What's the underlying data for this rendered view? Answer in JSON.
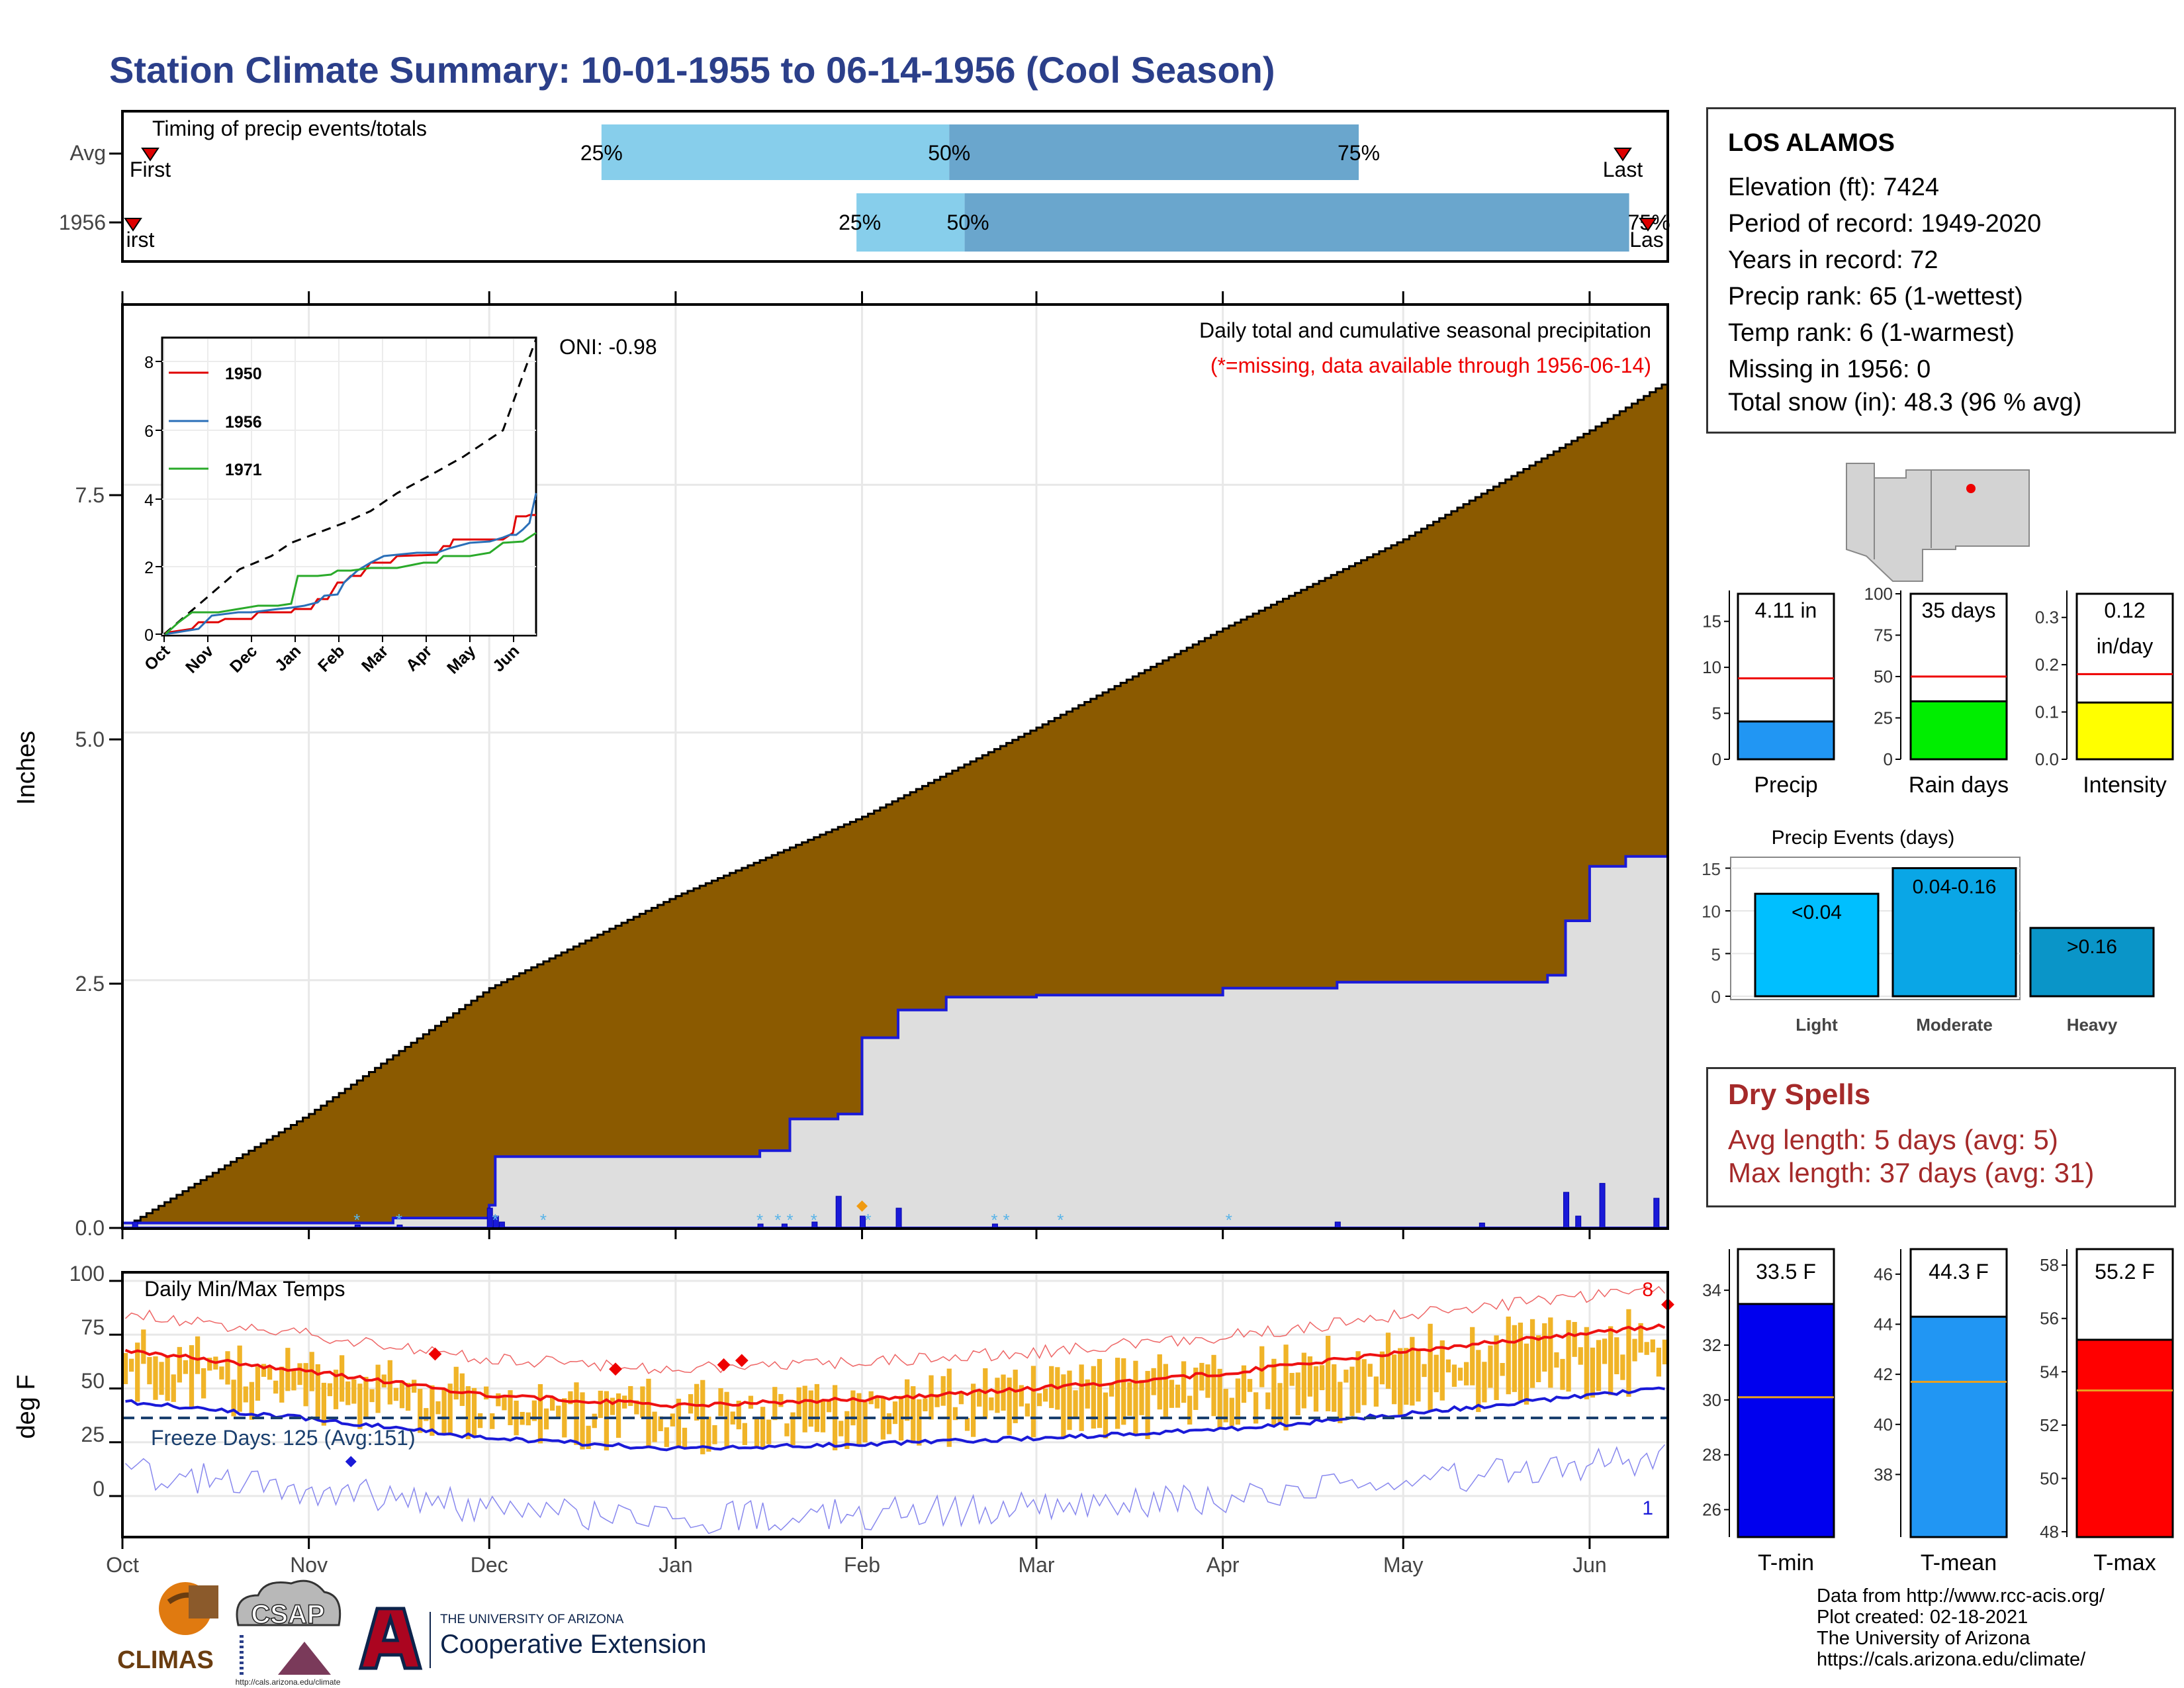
{
  "title": "Station Climate Summary: 10-01-1955 to 06-14-1956 (Cool Season)",
  "colors": {
    "title": "#2b3f8a",
    "cumulative_fill": "#8b5a00",
    "avg_fill": "#dedede",
    "seasonal_line": "#1a1ad8",
    "q_light": "#87ceeb",
    "q_dark": "#6aa6cd",
    "tmax": "#ee1111",
    "tmin": "#1a1ad8",
    "bars": "#f0b428",
    "freeze": "#1a3f6e",
    "dryspell": "#a52a2a",
    "rain_bar": "#00ee00",
    "intensity_bar": "#ffff00",
    "precip_bar": "#2196f3",
    "light": "#00bfff",
    "moderate": "#0aa6e6",
    "heavy": "#0a95c8"
  },
  "timing": {
    "title": "Timing of precip events/totals",
    "rows": [
      {
        "label": "Avg",
        "first": "First",
        "last": "Last",
        "p25": "25%",
        "p50": "50%",
        "p75": "75%"
      },
      {
        "label": "1956",
        "first": "irst",
        "last": "Las",
        "p25": "25%",
        "p50": "50%",
        "p75": "75%"
      }
    ],
    "avg_fractions": {
      "first": 0.04,
      "p25": 0.31,
      "p50": 0.535,
      "p75": 0.8,
      "last": 0.96
    },
    "y1956_fractions": {
      "first": 0.01,
      "p25": 0.475,
      "p50": 0.545,
      "p75": 1.0,
      "last": 0.985
    }
  },
  "main": {
    "ylabel": "Inches",
    "oni": "ONI: -0.98",
    "caption": "Daily total and cumulative seasonal precipitation",
    "missing_note": "(*=missing, data available through 1956-06-14)",
    "yticks": [
      "0.0",
      "2.5",
      "5.0",
      "7.5"
    ]
  },
  "inset": {
    "legend": [
      "1950",
      "1956",
      "1971"
    ],
    "yticks": [
      "0",
      "2",
      "4",
      "6",
      "8"
    ],
    "xticks": [
      "Oct",
      "Nov",
      "Dec",
      "Jan",
      "Feb",
      "Mar",
      "Apr",
      "May",
      "Jun"
    ]
  },
  "temps": {
    "title": "Daily Min/Max Temps",
    "ylabel": "deg F",
    "freeze": "Freeze Days: 125 (Avg:151)",
    "yticks": [
      "0",
      "25",
      "50",
      "75",
      "100"
    ],
    "count_top": "8",
    "count_bottom": "1"
  },
  "months": [
    "Oct",
    "Nov",
    "Dec",
    "Jan",
    "Feb",
    "Mar",
    "Apr",
    "May",
    "Jun"
  ],
  "station": {
    "name": "LOS ALAMOS",
    "lines": [
      "Elevation (ft): 7424",
      "Period of record: 1949-2020",
      "Years in record: 72",
      "Precip rank: 65 (1-wettest)",
      "Temp rank: 6 (1-warmest)",
      "Missing in 1956: 0",
      "Total snow (in): 48.3 (96 % avg)"
    ]
  },
  "gauges": [
    {
      "label": "Precip",
      "value_text": "4.11 in",
      "value": 4.11,
      "avg": 8.8,
      "min": 0,
      "max": 18,
      "ticks": [
        "0",
        "5",
        "10",
        "15"
      ],
      "tickvals": [
        0,
        5,
        10,
        15
      ]
    },
    {
      "label": "Rain days",
      "value_text": "35 days",
      "value": 35,
      "avg": 50,
      "min": 0,
      "max": 100,
      "ticks": [
        "0",
        "25",
        "50",
        "75",
        "100"
      ],
      "tickvals": [
        0,
        25,
        50,
        75,
        100
      ]
    },
    {
      "label": "Intensity",
      "value_text": "0.12",
      "value_text2": "in/day",
      "value": 0.12,
      "avg": 0.18,
      "min": 0,
      "max": 0.35,
      "ticks": [
        "0.0",
        "0.1",
        "0.2",
        "0.3"
      ],
      "tickvals": [
        0,
        0.1,
        0.2,
        0.3
      ]
    }
  ],
  "events": {
    "title": "Precip Events (days)",
    "yticks": [
      "0",
      "5",
      "10",
      "15"
    ],
    "bars": [
      {
        "category": "Light",
        "label": "<0.04",
        "value": 12
      },
      {
        "category": "Moderate",
        "label": "0.04-0.16",
        "value": 15
      },
      {
        "category": "Heavy",
        "label": ">0.16",
        "value": 8
      }
    ]
  },
  "dryspells": {
    "title": "Dry Spells",
    "avg": "Avg length: 5 days (avg: 5)",
    "max": "Max length: 37 days (avg: 31)"
  },
  "temp_gauges": [
    {
      "label": "T-min",
      "value_text": "33.5 F",
      "value": 33.5,
      "avg": 30.1,
      "min": 25,
      "max": 35.5,
      "ticks": [
        "26",
        "28",
        "30",
        "32",
        "34"
      ],
      "tickvals": [
        26,
        28,
        30,
        32,
        34
      ]
    },
    {
      "label": "T-mean",
      "value_text": "44.3 F",
      "value": 44.3,
      "avg": 41.7,
      "min": 35.5,
      "max": 47,
      "ticks": [
        "38",
        "40",
        "42",
        "44",
        "46"
      ],
      "tickvals": [
        38,
        40,
        42,
        44,
        46
      ]
    },
    {
      "label": "T-max",
      "value_text": "55.2 F",
      "value": 55.2,
      "avg": 53.3,
      "min": 47.8,
      "max": 58.6,
      "ticks": [
        "48",
        "50",
        "52",
        "54",
        "56",
        "58"
      ],
      "tickvals": [
        48,
        50,
        52,
        54,
        56,
        58
      ]
    }
  ],
  "footer": [
    "Data from http://www.rcc-acis.org/",
    "Plot created: 02-18-2021",
    "The University of Arizona",
    "https://cals.arizona.edu/climate/"
  ],
  "logos": {
    "climas": "CLIMAS",
    "csap": "CSAP",
    "csap_url": "http://cals.arizona.edu/climate",
    "ua_small": "THE UNIVERSITY OF ARIZONA",
    "ua_big": "Cooperative Extension"
  },
  "chart_data": [
    {
      "type": "area",
      "title": "Daily total and cumulative seasonal precipitation",
      "xlabel": "",
      "ylabel": "Inches",
      "x_range": [
        "1955-10-01",
        "1956-06-14"
      ],
      "ylim": [
        0,
        9.3
      ],
      "series": [
        {
          "name": "Cumulative average",
          "x": [
            "1955-10-01",
            "1955-11-01",
            "1955-12-01",
            "1956-01-01",
            "1956-02-01",
            "1956-03-01",
            "1956-04-01",
            "1956-05-01",
            "1956-06-01",
            "1956-06-14"
          ],
          "values": [
            0.0,
            1.15,
            2.42,
            3.35,
            4.15,
            5.05,
            6.05,
            6.95,
            8.05,
            8.55
          ]
        },
        {
          "name": "1956 cumulative",
          "x": [
            "1955-10-01",
            "1955-11-15",
            "1955-12-01",
            "1955-12-02",
            "1956-01-15",
            "1956-01-20",
            "1956-01-28",
            "1956-02-01",
            "1956-02-07",
            "1956-02-15",
            "1956-03-01",
            "1956-04-01",
            "1956-04-20",
            "1956-05-25",
            "1956-05-28",
            "1956-06-01",
            "1956-06-07",
            "1956-06-14"
          ],
          "values": [
            0.05,
            0.1,
            0.23,
            0.72,
            0.78,
            1.1,
            1.15,
            1.92,
            2.2,
            2.33,
            2.35,
            2.42,
            2.48,
            2.55,
            3.1,
            3.65,
            3.75,
            4.11
          ]
        }
      ],
      "grid": true
    },
    {
      "type": "line",
      "title": "Daily Min/Max Temps",
      "ylabel": "deg F",
      "ylim": [
        -20,
        100
      ],
      "x_range": [
        "1955-10-01",
        "1956-06-14"
      ],
      "series": [
        {
          "name": "Average max",
          "x": [
            "1955-10-01",
            "1955-11-01",
            "1955-12-01",
            "1956-01-01",
            "1956-02-01",
            "1956-03-01",
            "1956-04-01",
            "1956-05-01",
            "1956-06-01",
            "1956-06-14"
          ],
          "values": [
            68,
            58,
            47,
            42,
            45,
            50,
            57,
            67,
            76,
            79
          ]
        },
        {
          "name": "Average min",
          "x": [
            "1955-10-01",
            "1955-11-01",
            "1955-12-01",
            "1956-01-01",
            "1956-02-01",
            "1956-03-01",
            "1956-04-01",
            "1956-05-01",
            "1956-06-01",
            "1956-06-14"
          ],
          "values": [
            44,
            36,
            27,
            22,
            24,
            27,
            31,
            38,
            47,
            50
          ]
        },
        {
          "name": "Freeze line",
          "values": [
            32
          ]
        }
      ]
    }
  ]
}
